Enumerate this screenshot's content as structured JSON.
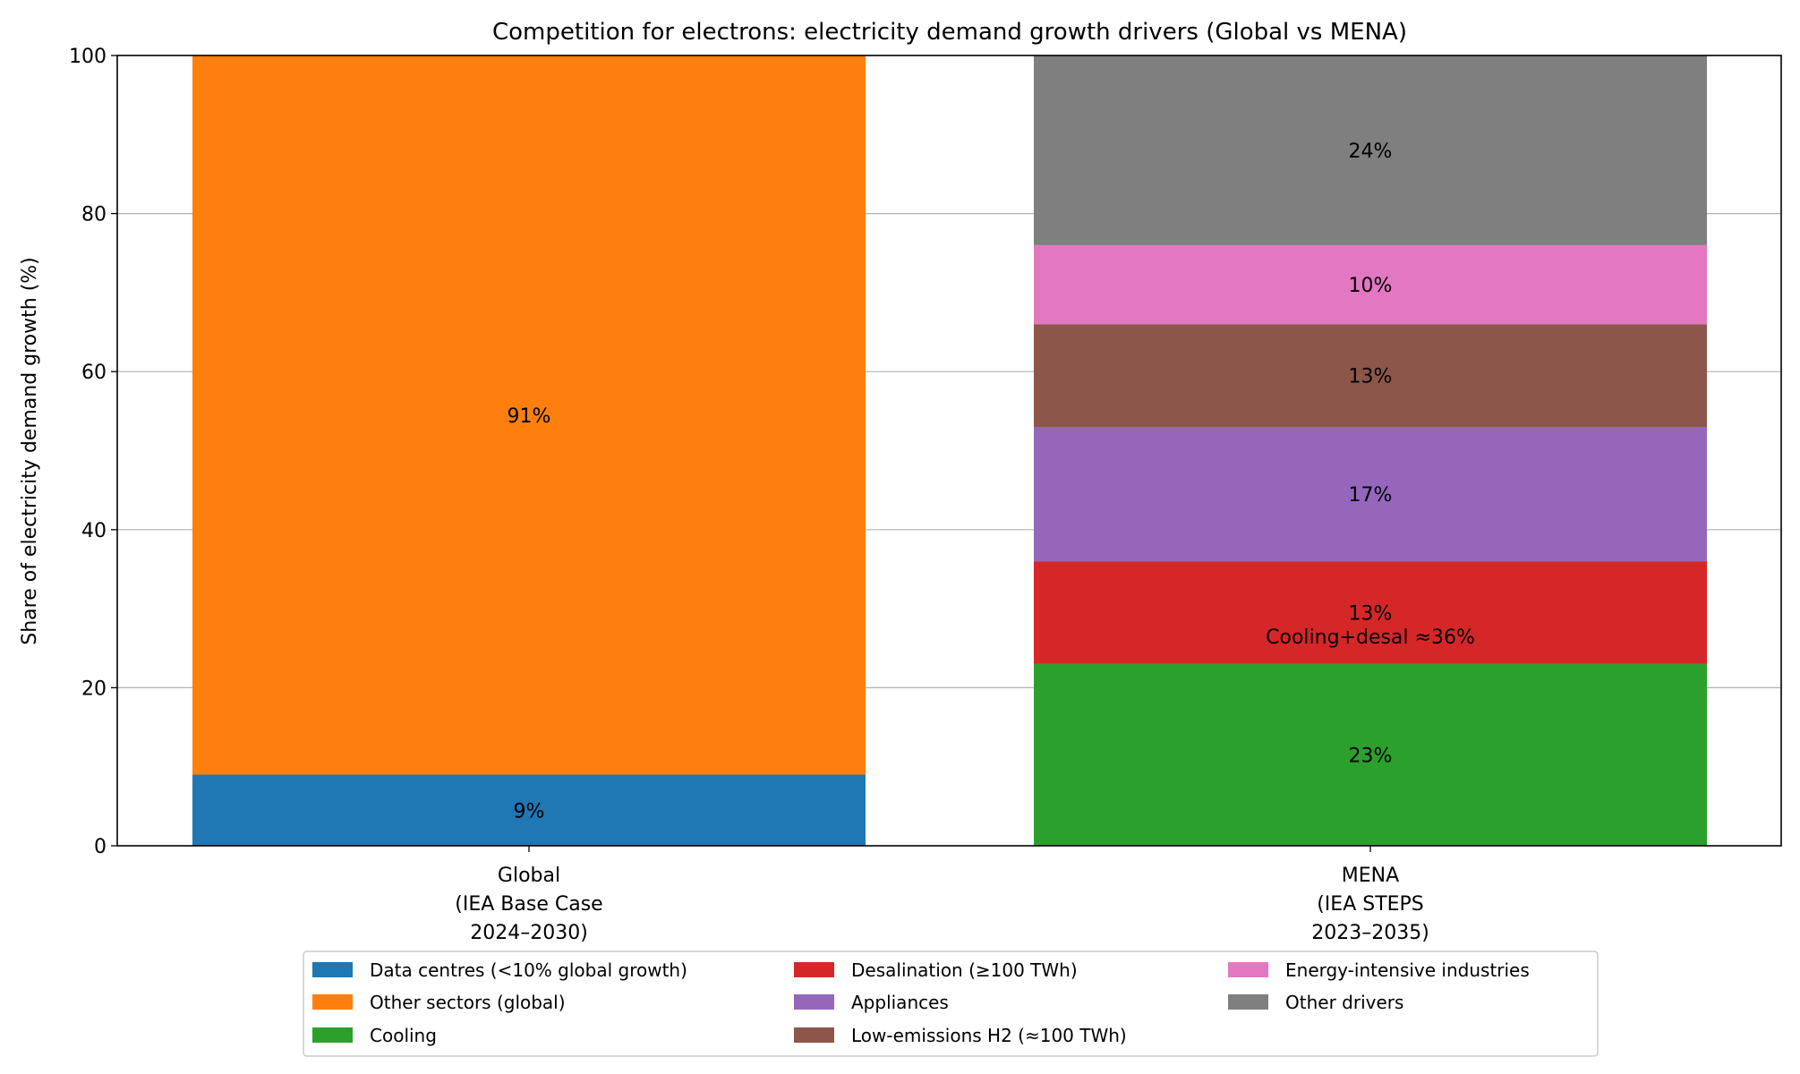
{
  "chart_data": {
    "type": "bar",
    "stacked": true,
    "title": "Competition for electrons: electricity demand growth drivers (Global vs MENA)",
    "xlabel": "",
    "ylabel": "Share of electricity demand growth (%)",
    "ylim": [
      0,
      100
    ],
    "yticks": [
      0,
      20,
      40,
      60,
      80,
      100
    ],
    "grid": "y",
    "legend_position": "bottom-center",
    "categories": [
      [
        "Global",
        "(IEA Base Case",
        "2024–2030)"
      ],
      [
        "MENA",
        "(IEA STEPS",
        "2023–2035)"
      ]
    ],
    "series": [
      {
        "name": "Data centres (<10% global growth)",
        "color": "#1f77b4",
        "values": [
          9,
          0
        ],
        "labels": [
          "9%",
          ""
        ]
      },
      {
        "name": "Other sectors (global)",
        "color": "#ff7f0e",
        "values": [
          91,
          0
        ],
        "labels": [
          "91%",
          ""
        ]
      },
      {
        "name": "Cooling",
        "color": "#2ca02c",
        "values": [
          0,
          23
        ],
        "labels": [
          "",
          "23%"
        ]
      },
      {
        "name": "Desalination (≥100 TWh)",
        "color": "#d62728",
        "values": [
          0,
          13
        ],
        "labels": [
          "",
          "13%"
        ]
      },
      {
        "name": "Appliances",
        "color": "#9467bd",
        "values": [
          0,
          17
        ],
        "labels": [
          "",
          "17%"
        ]
      },
      {
        "name": "Low-emissions H2 (≈100 TWh)",
        "color": "#8c564b",
        "values": [
          0,
          13
        ],
        "labels": [
          "",
          "13%"
        ]
      },
      {
        "name": "Energy-intensive industries",
        "color": "#e377c2",
        "values": [
          0,
          10
        ],
        "labels": [
          "",
          "10%"
        ]
      },
      {
        "name": "Other drivers",
        "color": "#7f7f7f",
        "values": [
          0,
          24
        ],
        "labels": [
          "",
          "24%"
        ]
      }
    ],
    "annotations": [
      {
        "text": "Cooling+desal ≈36%",
        "category": "MENA",
        "y": 26.5
      }
    ]
  }
}
